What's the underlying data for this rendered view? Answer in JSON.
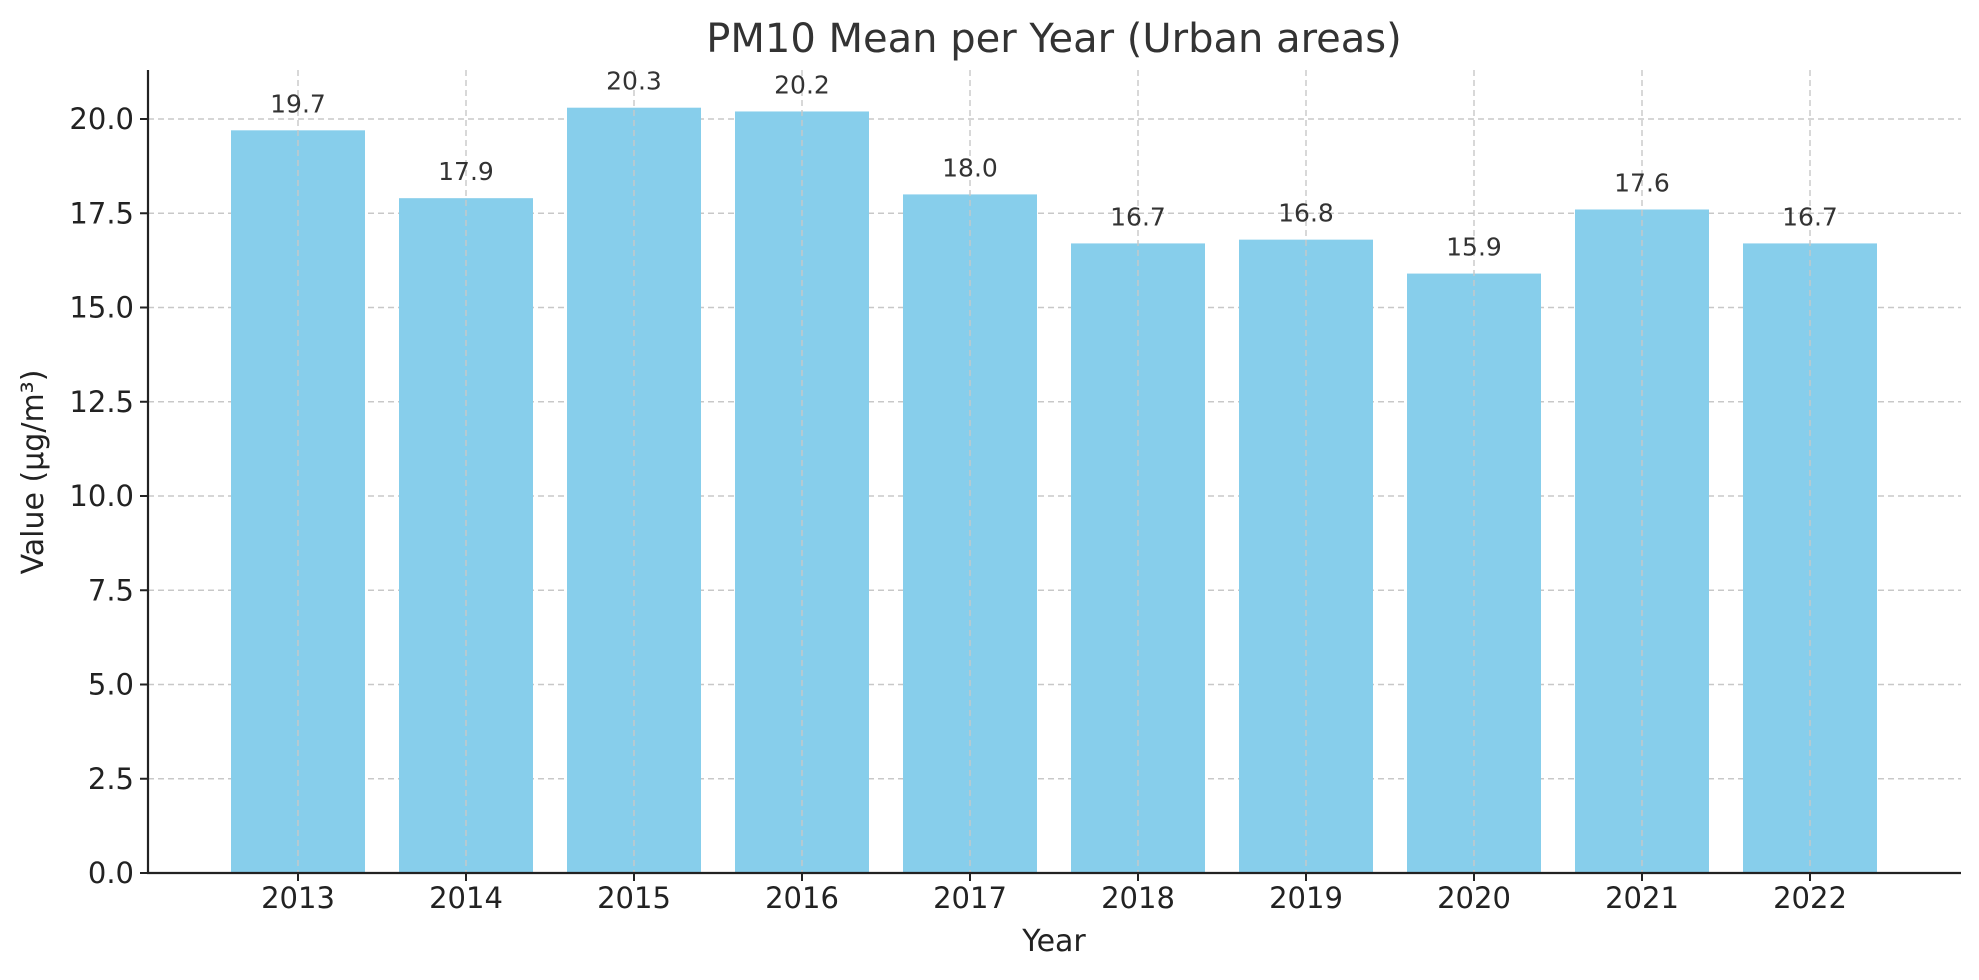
{
  "chart_data": {
    "type": "bar",
    "title": "PM10 Mean per Year (Urban areas)",
    "xlabel": "Year",
    "ylabel": "Value (µg/m³)",
    "categories": [
      "2013",
      "2014",
      "2015",
      "2016",
      "2017",
      "2018",
      "2019",
      "2020",
      "2021",
      "2022"
    ],
    "values": [
      19.7,
      17.9,
      20.3,
      20.2,
      18.0,
      16.7,
      16.8,
      15.9,
      17.6,
      16.7
    ],
    "value_labels": [
      "19.7",
      "17.9",
      "20.3",
      "20.2",
      "18.0",
      "16.7",
      "16.8",
      "15.9",
      "17.6",
      "16.7"
    ],
    "yticks": [
      0.0,
      2.5,
      5.0,
      7.5,
      10.0,
      12.5,
      15.0,
      17.5,
      20.0
    ],
    "ytick_labels": [
      "0.0",
      "2.5",
      "5.0",
      "7.5",
      "10.0",
      "12.5",
      "15.0",
      "17.5",
      "20.0"
    ],
    "ylim": [
      0,
      21.3
    ],
    "grid": true,
    "bar_color": "#87ceeb",
    "grid_color": "#c8c8c8"
  }
}
